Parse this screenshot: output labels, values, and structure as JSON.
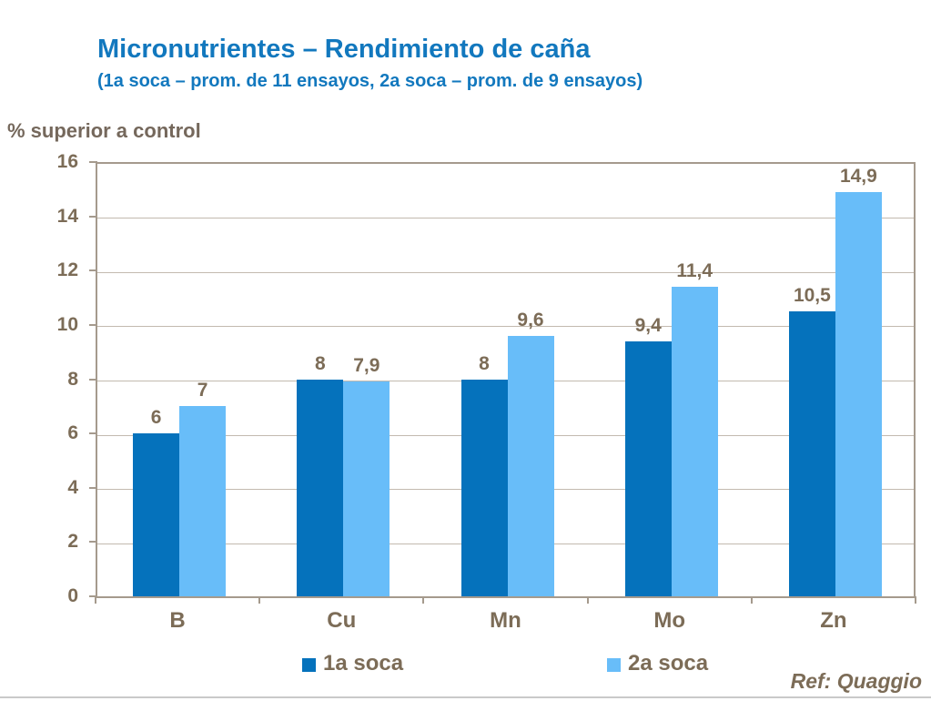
{
  "chart_data": {
    "type": "bar",
    "title": "Micronutrientes – Rendimiento de caña",
    "subtitle": "(1a soca – prom. de 11 ensayos, 2a soca – prom. de 9 ensayos)",
    "ylabel": "% superior a control",
    "footer": "Ref: Quaggio",
    "categories": [
      "B",
      "Cu",
      "Mn",
      "Mo",
      "Zn"
    ],
    "series": [
      {
        "name": "1a soca",
        "color": "#0572BC",
        "values": [
          6,
          8,
          8,
          9.4,
          10.5
        ],
        "labels": [
          "6",
          "8",
          "8",
          "9,4",
          "10,5"
        ]
      },
      {
        "name": "2a soca",
        "color": "#68BDF9",
        "values": [
          7,
          7.9,
          9.6,
          11.4,
          14.9
        ],
        "labels": [
          "7",
          "7,9",
          "9,6",
          "11,4",
          "14,9"
        ]
      }
    ],
    "ylim": [
      0,
      16
    ],
    "yticks": [
      0,
      2,
      4,
      6,
      8,
      10,
      12,
      14,
      16
    ],
    "grid": "horizontal",
    "legend_position": "bottom"
  },
  "colors": {
    "title_text": "#1278BE",
    "axis_text": "#7C6C57",
    "ylabel_text": "#75685C",
    "series1_fill": "#0572BC",
    "series2_fill": "#68BDF9",
    "plot_border": "#A59A8D",
    "gridline": "#C3BAAF",
    "bottom_rule": "#C9C9C9"
  }
}
